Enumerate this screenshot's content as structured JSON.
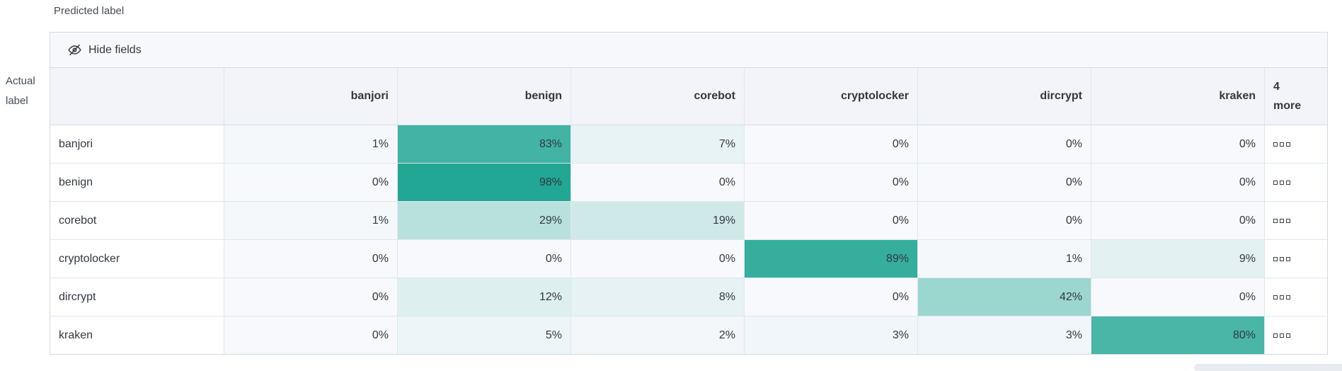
{
  "axes": {
    "predicted_label": "Predicted label",
    "actual_label_line1": "Actual",
    "actual_label_line2": "label"
  },
  "toolbar": {
    "hide_fields_label": "Hide fields",
    "icon": "eye-closed-icon"
  },
  "chart_data": {
    "type": "heatmap",
    "subtype": "confusion-matrix",
    "xlabel": "Predicted label",
    "ylabel": "Actual label",
    "value_unit": "%",
    "columns": [
      "banjori",
      "benign",
      "corebot",
      "cryptolocker",
      "dircrypt",
      "kraken"
    ],
    "overflow_column": {
      "line1": "4",
      "line2": "more",
      "cell_icon": "boxes-horizontal-icon"
    },
    "rows": [
      {
        "label": "banjori",
        "values": [
          1,
          83,
          7,
          0,
          0,
          0
        ],
        "cells": [
          "1%",
          "83%",
          "7%",
          "0%",
          "0%",
          "0%"
        ]
      },
      {
        "label": "benign",
        "values": [
          0,
          98,
          0,
          0,
          0,
          0
        ],
        "cells": [
          "0%",
          "98%",
          "0%",
          "0%",
          "0%",
          "0%"
        ]
      },
      {
        "label": "corebot",
        "values": [
          1,
          29,
          19,
          0,
          0,
          0
        ],
        "cells": [
          "1%",
          "29%",
          "19%",
          "0%",
          "0%",
          "0%"
        ]
      },
      {
        "label": "cryptolocker",
        "values": [
          0,
          0,
          0,
          89,
          1,
          9
        ],
        "cells": [
          "0%",
          "0%",
          "0%",
          "89%",
          "1%",
          "9%"
        ]
      },
      {
        "label": "dircrypt",
        "values": [
          0,
          12,
          8,
          0,
          42,
          0
        ],
        "cells": [
          "0%",
          "12%",
          "8%",
          "0%",
          "42%",
          "0%"
        ]
      },
      {
        "label": "kraken",
        "values": [
          0,
          5,
          2,
          3,
          3,
          80
        ],
        "cells": [
          "0%",
          "5%",
          "2%",
          "3%",
          "3%",
          "80%"
        ]
      }
    ]
  },
  "colors": {
    "accent_teal": "#1DA592",
    "cell_base": "#F7F9FC",
    "header_bg": "#F2F4F9",
    "toolbar_bg": "#F7F8FB",
    "border_outer": "#D3DAE6",
    "border_inner": "#E0E6EF",
    "text": "#343741",
    "axis_label_text": "#454C59",
    "scrollbar": "#ECEEF3"
  }
}
